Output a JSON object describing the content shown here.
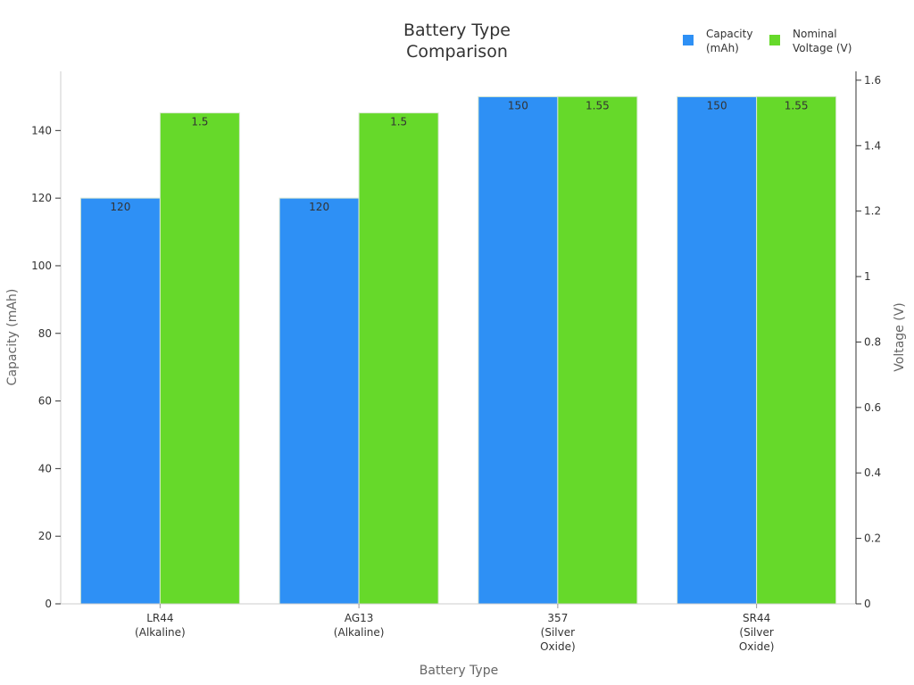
{
  "chart_data": {
    "type": "bar",
    "title": [
      "Battery Type",
      "Comparison"
    ],
    "xlabel": "Battery Type",
    "ylabel_left": "Capacity (mAh)",
    "ylabel_right": "Voltage (V)",
    "categories": [
      [
        "LR44",
        "(Alkaline)"
      ],
      [
        "AG13",
        "(Alkaline)"
      ],
      [
        "357",
        "(Silver",
        "Oxide)"
      ],
      [
        "SR44",
        "(Silver",
        "Oxide)"
      ]
    ],
    "series": [
      {
        "name": [
          "Capacity",
          "(mAh)"
        ],
        "axis": "left",
        "color": "#2e90f5",
        "values": [
          120,
          120,
          150,
          150
        ],
        "value_labels": [
          "120",
          "120",
          "150",
          "150"
        ]
      },
      {
        "name": [
          "Nominal",
          "Voltage (V)"
        ],
        "axis": "right",
        "color": "#66d92a",
        "values": [
          1.5,
          1.5,
          1.55,
          1.55
        ],
        "value_labels": [
          "1.5",
          "1.5",
          "1.55",
          "1.55"
        ]
      }
    ],
    "ylim_left": [
      0,
      157.5
    ],
    "yticks_left": [
      "0",
      "20",
      "40",
      "60",
      "80",
      "100",
      "120",
      "140"
    ],
    "ylim_right": [
      0,
      1.627
    ],
    "yticks_right": [
      "0",
      "0.2",
      "0.4",
      "0.6",
      "0.8",
      "1",
      "1.2",
      "1.4",
      "1.6"
    ],
    "grid": false,
    "legend_position": "top-right"
  }
}
